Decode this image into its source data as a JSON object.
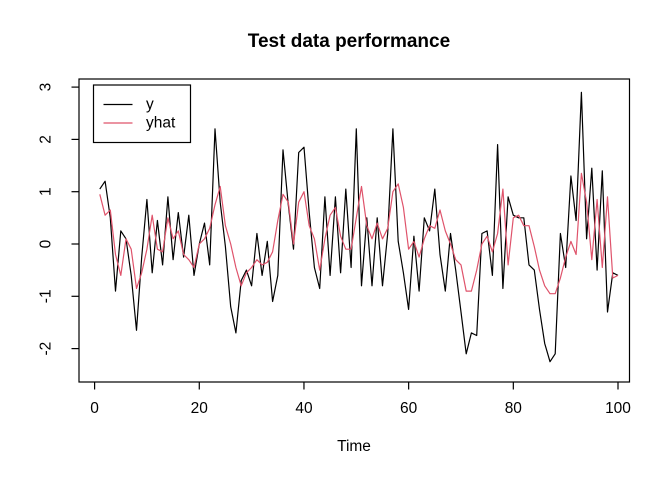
{
  "chart_data": {
    "type": "line",
    "title": "Test data performance",
    "xlabel": "Time",
    "ylabel": "",
    "x_start": 1,
    "x_step": 1,
    "n_points": 100,
    "x_ticks": [
      0,
      20,
      40,
      60,
      80,
      100
    ],
    "y_ticks": [
      -2,
      -1,
      0,
      1,
      2,
      3
    ],
    "xlim": [
      -3,
      104
    ],
    "ylim": [
      -2.55,
      3.15
    ],
    "grid": false,
    "background": "#ffffff",
    "box_color": "#000000",
    "legend": {
      "position": "top-left",
      "entries": [
        {
          "label": "y",
          "color": "#000000"
        },
        {
          "label": "yhat",
          "color": "#DF536B"
        }
      ]
    },
    "series": [
      {
        "name": "y",
        "color": "#000000",
        "values": [
          1.05,
          1.2,
          0.5,
          -0.9,
          0.25,
          0.1,
          -0.6,
          -1.65,
          -0.25,
          0.85,
          -0.55,
          0.45,
          -0.4,
          0.9,
          -0.3,
          0.6,
          -0.25,
          0.55,
          -0.6,
          0.0,
          0.4,
          -0.4,
          2.2,
          0.8,
          -0.05,
          -1.2,
          -1.7,
          -0.7,
          -0.5,
          -0.8,
          0.2,
          -0.6,
          0.05,
          -1.1,
          -0.6,
          1.8,
          0.75,
          -0.1,
          1.75,
          1.85,
          0.6,
          -0.45,
          -0.85,
          0.9,
          -0.6,
          0.9,
          -0.55,
          1.05,
          -0.45,
          2.2,
          -0.8,
          0.5,
          -0.8,
          0.5,
          -0.8,
          0.2,
          2.2,
          0.05,
          -0.55,
          -1.25,
          0.15,
          -0.9,
          0.5,
          0.25,
          1.05,
          -0.2,
          -0.9,
          0.2,
          -0.5,
          -1.3,
          -2.1,
          -1.7,
          -1.75,
          0.2,
          0.25,
          -0.6,
          1.9,
          -0.85,
          0.9,
          0.55,
          0.5,
          0.5,
          -0.4,
          -0.5,
          -1.25,
          -1.9,
          -2.25,
          -2.1,
          0.2,
          -0.45,
          1.3,
          0.45,
          2.9,
          0.1,
          1.45,
          -0.5,
          1.4,
          -1.3,
          -0.55,
          -0.6
        ]
      },
      {
        "name": "yhat",
        "color": "#DF536B",
        "values": [
          0.95,
          0.55,
          0.65,
          -0.2,
          -0.6,
          0.1,
          -0.1,
          -0.85,
          -0.55,
          -0.1,
          0.55,
          -0.1,
          -0.15,
          0.5,
          0.1,
          0.25,
          -0.2,
          -0.3,
          -0.45,
          0.0,
          0.1,
          0.3,
          0.75,
          1.1,
          0.35,
          0.0,
          -0.45,
          -0.8,
          -0.55,
          -0.45,
          -0.3,
          -0.4,
          -0.35,
          -0.15,
          0.45,
          0.95,
          0.8,
          0.0,
          0.8,
          1.0,
          0.35,
          0.1,
          -0.5,
          0.1,
          0.55,
          0.7,
          0.15,
          -0.1,
          -0.1,
          0.5,
          1.1,
          0.35,
          0.1,
          0.4,
          0.1,
          0.3,
          1.0,
          1.15,
          0.7,
          -0.1,
          0.05,
          -0.25,
          0.1,
          0.35,
          0.3,
          0.65,
          0.25,
          0.0,
          -0.3,
          -0.4,
          -0.9,
          -0.9,
          -0.5,
          0.0,
          0.15,
          -0.15,
          0.2,
          1.05,
          -0.4,
          0.5,
          0.55,
          0.35,
          0.35,
          -0.05,
          -0.5,
          -0.8,
          -0.95,
          -0.95,
          -0.65,
          -0.25,
          0.05,
          -0.2,
          1.35,
          0.8,
          -0.3,
          0.85,
          -0.45,
          0.9,
          -0.65,
          -0.6
        ]
      }
    ]
  }
}
